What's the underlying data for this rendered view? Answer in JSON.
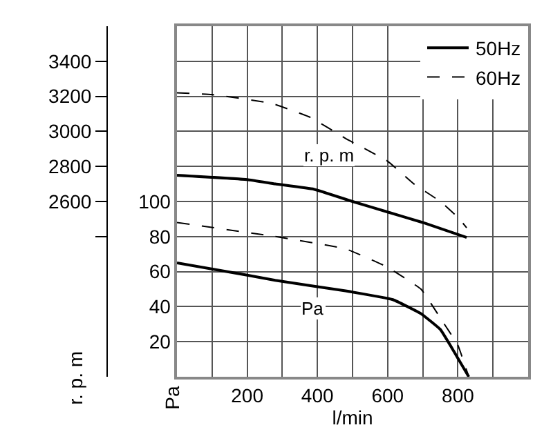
{
  "chart_data": {
    "type": "line",
    "xlabel": "l/min",
    "ylabel": "Pa",
    "y2label": "r. p. m",
    "xlim": [
      0,
      1000
    ],
    "xticks": [
      {
        "value": 100,
        "label": null
      },
      200,
      {
        "value": 300,
        "label": null
      },
      400,
      {
        "value": 500,
        "label": null
      },
      600,
      {
        "value": 700,
        "label": null
      },
      800,
      {
        "value": 900,
        "label": null
      }
    ],
    "ylim": [
      0,
      200
    ],
    "yticks": [
      20,
      40,
      60,
      80,
      100,
      {
        "value": 120,
        "label": null
      },
      {
        "value": 140,
        "label": null
      },
      {
        "value": 160,
        "label": null
      },
      {
        "value": 180,
        "label": null
      }
    ],
    "y2lim": [
      1600,
      3600
    ],
    "y2ticks": [
      {
        "value": 2400,
        "label": null
      },
      2600,
      2800,
      3000,
      3200,
      3400
    ],
    "grid": true,
    "legend": "top right",
    "annotations": [
      "r. p. m",
      "Pa"
    ],
    "series": [
      {
        "name": "50Hz",
        "color": "#000000",
        "line_style": "solid",
        "axis": "y2",
        "x": [
          0,
          200,
          280,
          390,
          500,
          600,
          700,
          825
        ],
        "values": [
          2750,
          2725,
          2700,
          2670,
          2600,
          2540,
          2480,
          2395
        ]
      },
      {
        "name": "60Hz",
        "color": "#000000",
        "line_style": "dashed",
        "axis": "y2",
        "x": [
          0,
          100,
          270,
          380,
          480,
          600,
          675,
          750,
          800,
          825
        ],
        "values": [
          3220,
          3210,
          3160,
          3080,
          2960,
          2830,
          2700,
          2600,
          2510,
          2450
        ]
      },
      {
        "color": "#000000",
        "line_style": "solid",
        "x": [
          0,
          200,
          280,
          480,
          615,
          695,
          750,
          790,
          831
        ],
        "values": [
          65,
          58,
          55,
          49,
          44,
          36,
          27,
          14,
          0
        ]
      },
      {
        "color": "#000000",
        "line_style": "dashed",
        "x": [
          0,
          280,
          480,
          595,
          695,
          755,
          800,
          831
        ],
        "values": [
          88,
          80,
          73,
          63,
          50,
          32,
          18,
          0
        ]
      }
    ]
  }
}
